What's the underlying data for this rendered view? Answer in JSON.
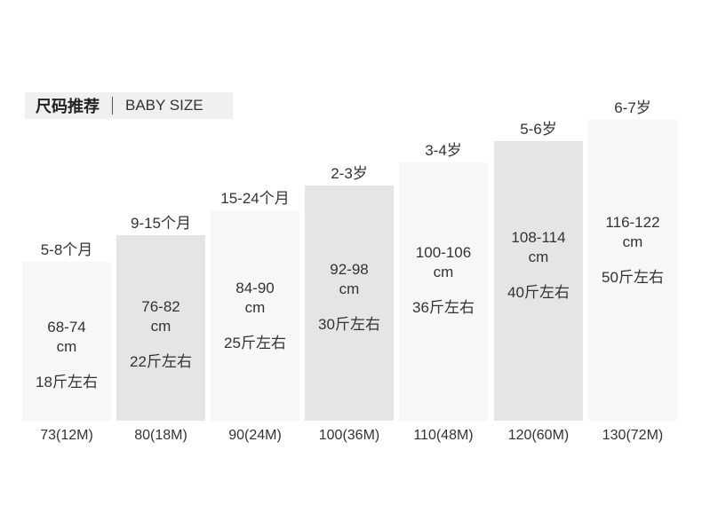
{
  "header": {
    "title": "尺码推荐",
    "subtitle": "BABY SIZE"
  },
  "columns": [
    {
      "age": "5-8个月",
      "height": "68-74",
      "unit": "cm",
      "weight": "18斤左右",
      "size": "73(12M)"
    },
    {
      "age": "9-15个月",
      "height": "76-82",
      "unit": "cm",
      "weight": "22斤左右",
      "size": "80(18M)"
    },
    {
      "age": "15-24个月",
      "height": "84-90",
      "unit": "cm",
      "weight": "25斤左右",
      "size": "90(24M)"
    },
    {
      "age": "2-3岁",
      "height": "92-98",
      "unit": "cm",
      "weight": "30斤左右",
      "size": "100(36M)"
    },
    {
      "age": "3-4岁",
      "height": "100-106",
      "unit": "cm",
      "weight": "36斤左右",
      "size": "110(48M)"
    },
    {
      "age": "5-6岁",
      "height": "108-114",
      "unit": "cm",
      "weight": "40斤左右",
      "size": "120(60M)"
    },
    {
      "age": "6-7岁",
      "height": "116-122",
      "unit": "cm",
      "weight": "50斤左右",
      "size": "130(72M)"
    }
  ]
}
